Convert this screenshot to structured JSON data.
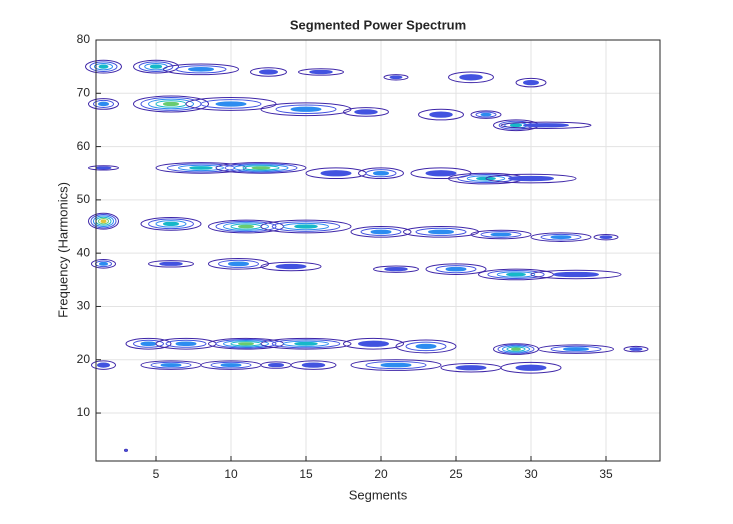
{
  "chart_data": {
    "type": "contour",
    "title": "Segmented Power Spectrum",
    "x_label": "Segments",
    "y_label": "Frequency (Harmonics)",
    "xlim": [
      1,
      38.6
    ],
    "ylim": [
      1,
      80
    ],
    "xticks": [
      5,
      10,
      15,
      20,
      25,
      30,
      35
    ],
    "yticks": [
      10,
      20,
      30,
      40,
      50,
      60,
      70,
      80
    ],
    "grid": true,
    "colors": [
      "#3e26a8",
      "#4253e0",
      "#2c8cf0",
      "#16b8c8",
      "#69cb6f",
      "#e2c43a"
    ],
    "blobs": [
      {
        "x": 1.5,
        "y": 75,
        "w": 1.2,
        "h": 1.2,
        "level": 3
      },
      {
        "x": 5,
        "y": 75,
        "w": 1.5,
        "h": 1.2,
        "level": 3
      },
      {
        "x": 8,
        "y": 74.5,
        "w": 2.5,
        "h": 1,
        "level": 2
      },
      {
        "x": 12.5,
        "y": 74,
        "w": 1.2,
        "h": 0.8,
        "level": 1
      },
      {
        "x": 16,
        "y": 74,
        "w": 1.5,
        "h": 0.6,
        "level": 1
      },
      {
        "x": 21,
        "y": 73,
        "w": 0.8,
        "h": 0.5,
        "level": 1
      },
      {
        "x": 26,
        "y": 73,
        "w": 1.5,
        "h": 1,
        "level": 1
      },
      {
        "x": 30,
        "y": 72,
        "w": 1,
        "h": 0.8,
        "level": 1
      },
      {
        "x": 1.5,
        "y": 68,
        "w": 1,
        "h": 1,
        "level": 2
      },
      {
        "x": 6,
        "y": 68,
        "w": 2.5,
        "h": 1.5,
        "level": 4
      },
      {
        "x": 10,
        "y": 68,
        "w": 3,
        "h": 1.2,
        "level": 2
      },
      {
        "x": 15,
        "y": 67,
        "w": 3,
        "h": 1.2,
        "level": 2
      },
      {
        "x": 19,
        "y": 66.5,
        "w": 1.5,
        "h": 0.8,
        "level": 1
      },
      {
        "x": 24,
        "y": 66,
        "w": 1.5,
        "h": 1,
        "level": 1
      },
      {
        "x": 27,
        "y": 66,
        "w": 1,
        "h": 0.7,
        "level": 2
      },
      {
        "x": 29,
        "y": 64,
        "w": 1.5,
        "h": 1,
        "level": 3
      },
      {
        "x": 31,
        "y": 64,
        "w": 3,
        "h": 0.6,
        "level": 1
      },
      {
        "x": 1.5,
        "y": 56,
        "w": 1,
        "h": 0.4,
        "level": 1
      },
      {
        "x": 8,
        "y": 56,
        "w": 3,
        "h": 1,
        "level": 3
      },
      {
        "x": 12,
        "y": 56,
        "w": 3,
        "h": 1,
        "level": 4
      },
      {
        "x": 17,
        "y": 55,
        "w": 2,
        "h": 1,
        "level": 1
      },
      {
        "x": 20,
        "y": 55,
        "w": 1.5,
        "h": 1,
        "level": 2
      },
      {
        "x": 24,
        "y": 55,
        "w": 2,
        "h": 1,
        "level": 1
      },
      {
        "x": 27,
        "y": 54,
        "w": 2.5,
        "h": 1,
        "level": 3
      },
      {
        "x": 30,
        "y": 54,
        "w": 3,
        "h": 0.8,
        "level": 1
      },
      {
        "x": 1.5,
        "y": 46,
        "w": 1,
        "h": 1.5,
        "level": 5
      },
      {
        "x": 6,
        "y": 45.5,
        "w": 2,
        "h": 1.2,
        "level": 3
      },
      {
        "x": 11,
        "y": 45,
        "w": 2.5,
        "h": 1.2,
        "level": 4
      },
      {
        "x": 15,
        "y": 45,
        "w": 3,
        "h": 1.2,
        "level": 3
      },
      {
        "x": 20,
        "y": 44,
        "w": 2,
        "h": 1,
        "level": 2
      },
      {
        "x": 24,
        "y": 44,
        "w": 2.5,
        "h": 1,
        "level": 2
      },
      {
        "x": 28,
        "y": 43.5,
        "w": 2,
        "h": 0.8,
        "level": 2
      },
      {
        "x": 32,
        "y": 43,
        "w": 2,
        "h": 0.8,
        "level": 2
      },
      {
        "x": 35,
        "y": 43,
        "w": 0.8,
        "h": 0.5,
        "level": 1
      },
      {
        "x": 1.5,
        "y": 38,
        "w": 0.8,
        "h": 0.8,
        "level": 2
      },
      {
        "x": 6,
        "y": 38,
        "w": 1.5,
        "h": 0.6,
        "level": 1
      },
      {
        "x": 10.5,
        "y": 38,
        "w": 2,
        "h": 1,
        "level": 2
      },
      {
        "x": 14,
        "y": 37.5,
        "w": 2,
        "h": 0.8,
        "level": 1
      },
      {
        "x": 21,
        "y": 37,
        "w": 1.5,
        "h": 0.6,
        "level": 1
      },
      {
        "x": 25,
        "y": 37,
        "w": 2,
        "h": 1,
        "level": 2
      },
      {
        "x": 29,
        "y": 36,
        "w": 2.5,
        "h": 1,
        "level": 3
      },
      {
        "x": 33,
        "y": 36,
        "w": 3,
        "h": 0.8,
        "level": 1
      },
      {
        "x": 4.5,
        "y": 23,
        "w": 1.5,
        "h": 1,
        "level": 2
      },
      {
        "x": 7,
        "y": 23,
        "w": 2,
        "h": 1,
        "level": 2
      },
      {
        "x": 11,
        "y": 23,
        "w": 2.5,
        "h": 1,
        "level": 4
      },
      {
        "x": 15,
        "y": 23,
        "w": 3,
        "h": 1,
        "level": 3
      },
      {
        "x": 19.5,
        "y": 23,
        "w": 2,
        "h": 1,
        "level": 1
      },
      {
        "x": 23,
        "y": 22.5,
        "w": 2,
        "h": 1.2,
        "level": 2
      },
      {
        "x": 29,
        "y": 22,
        "w": 1.5,
        "h": 1,
        "level": 4
      },
      {
        "x": 33,
        "y": 22,
        "w": 2.5,
        "h": 0.8,
        "level": 2
      },
      {
        "x": 37,
        "y": 22,
        "w": 0.8,
        "h": 0.5,
        "level": 1
      },
      {
        "x": 1.5,
        "y": 19,
        "w": 0.8,
        "h": 0.8,
        "level": 1
      },
      {
        "x": 6,
        "y": 19,
        "w": 2,
        "h": 0.8,
        "level": 2
      },
      {
        "x": 10,
        "y": 19,
        "w": 2,
        "h": 0.8,
        "level": 2
      },
      {
        "x": 13,
        "y": 19,
        "w": 1,
        "h": 0.6,
        "level": 1
      },
      {
        "x": 15.5,
        "y": 19,
        "w": 1.5,
        "h": 0.8,
        "level": 1
      },
      {
        "x": 21,
        "y": 19,
        "w": 3,
        "h": 1,
        "level": 2
      },
      {
        "x": 26,
        "y": 18.5,
        "w": 2,
        "h": 0.8,
        "level": 1
      },
      {
        "x": 30,
        "y": 18.5,
        "w": 2,
        "h": 1,
        "level": 1
      },
      {
        "x": 3,
        "y": 3,
        "w": 0.1,
        "h": 0.2,
        "level": 1
      }
    ]
  }
}
